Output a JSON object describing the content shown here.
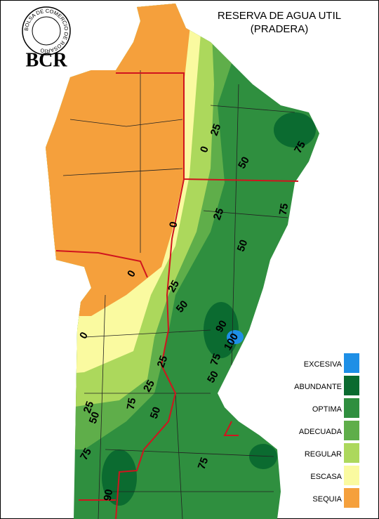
{
  "header": {
    "logo_text": "BOLSA DE COMERCIO DE ROSARIO",
    "logo_abbr": "BCR",
    "title": "RESERVA DE AGUA UTIL",
    "subtitle": "(PRADERA)"
  },
  "legend": [
    {
      "label": "EXCESIVA",
      "color": "#1e8fe6"
    },
    {
      "label": "ABUNDANTE",
      "color": "#0b6b30"
    },
    {
      "label": "OPTIMA",
      "color": "#2f8f3f"
    },
    {
      "label": "ADECUADA",
      "color": "#5fae4a"
    },
    {
      "label": "REGULAR",
      "color": "#acd85c"
    },
    {
      "label": "ESCASA",
      "color": "#fafaa0"
    },
    {
      "label": "SEQUIA",
      "color": "#f5a03c"
    }
  ],
  "contour_labels": [
    25,
    0,
    75,
    50,
    75,
    25,
    0,
    50,
    0,
    25,
    50,
    90,
    100,
    0,
    75,
    25,
    50,
    25,
    75,
    25,
    50,
    50,
    75,
    75,
    90
  ]
}
